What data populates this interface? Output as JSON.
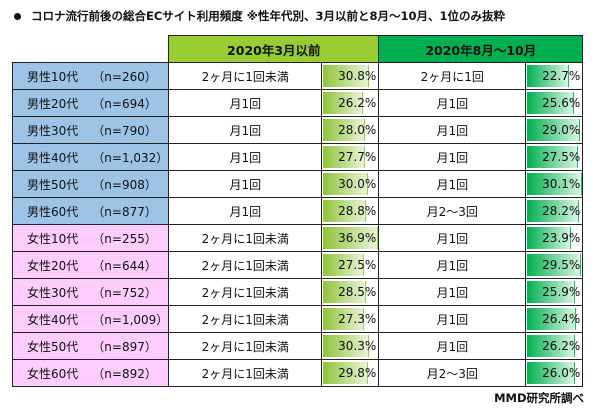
{
  "title": "コロナ流行前後の総合ECサイト利用頻度 ※性年代別、3月以前と8月～10月、1位のみ抜粋",
  "source": "MMD研究所調べ",
  "colors": {
    "header1": "#99cc33",
    "header2": "#00b050",
    "male": "#9dc3e6",
    "female": "#ffccff"
  },
  "chart_data": {
    "type": "table",
    "columns": [
      "2020年3月以前",
      "2020年8月～10月"
    ],
    "rows": [
      {
        "group": "男性10代",
        "n": "（n=260）",
        "c1": "2ヶ月に1回未満",
        "v1": "30.8%",
        "c2": "2ヶ月に1回",
        "v2": "22.7%",
        "sex": "m"
      },
      {
        "group": "男性20代",
        "n": "（n=694）",
        "c1": "月1回",
        "v1": "26.2%",
        "c2": "月1回",
        "v2": "25.6%",
        "sex": "m"
      },
      {
        "group": "男性30代",
        "n": "（n=790）",
        "c1": "月1回",
        "v1": "28.0%",
        "c2": "月1回",
        "v2": "29.0%",
        "sex": "m"
      },
      {
        "group": "男性40代",
        "n": "（n=1,032）",
        "c1": "月1回",
        "v1": "27.7%",
        "c2": "月1回",
        "v2": "27.5%",
        "sex": "m"
      },
      {
        "group": "男性50代",
        "n": "（n=908）",
        "c1": "月1回",
        "v1": "30.0%",
        "c2": "月1回",
        "v2": "30.1%",
        "sex": "m"
      },
      {
        "group": "男性60代",
        "n": "（n=877）",
        "c1": "月1回",
        "v1": "28.8%",
        "c2": "月2～3回",
        "v2": "28.2%",
        "sex": "m"
      },
      {
        "group": "女性10代",
        "n": "（n=255）",
        "c1": "2ヶ月に1回未満",
        "v1": "36.9%",
        "c2": "月1回",
        "v2": "23.9%",
        "sex": "f"
      },
      {
        "group": "女性20代",
        "n": "（n=644）",
        "c1": "2ヶ月に1回未満",
        "v1": "27.5%",
        "c2": "月1回",
        "v2": "29.5%",
        "sex": "f"
      },
      {
        "group": "女性30代",
        "n": "（n=752）",
        "c1": "2ヶ月に1回未満",
        "v1": "28.5%",
        "c2": "月1回",
        "v2": "25.9%",
        "sex": "f"
      },
      {
        "group": "女性40代",
        "n": "（n=1,009）",
        "c1": "2ヶ月に1回未満",
        "v1": "27.3%",
        "c2": "月1回",
        "v2": "26.4%",
        "sex": "f"
      },
      {
        "group": "女性50代",
        "n": "（n=897）",
        "c1": "2ヶ月に1回未満",
        "v1": "30.3%",
        "c2": "月1回",
        "v2": "26.2%",
        "sex": "f"
      },
      {
        "group": "女性60代",
        "n": "（n=892）",
        "c1": "2ヶ月に1回未満",
        "v1": "29.8%",
        "c2": "月2～3回",
        "v2": "26.0%",
        "sex": "f"
      }
    ]
  }
}
